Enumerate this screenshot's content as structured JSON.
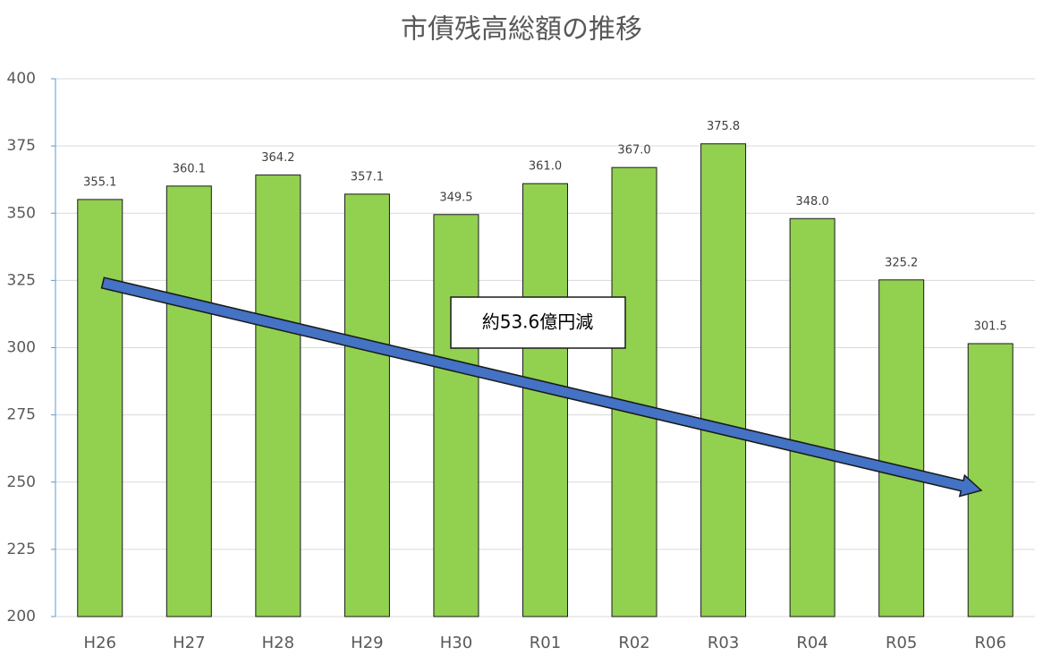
{
  "chart_data": {
    "type": "bar",
    "title": "市債残高総額の推移",
    "categories": [
      "H26",
      "H27",
      "H28",
      "H29",
      "H30",
      "R01",
      "R02",
      "R03",
      "R04",
      "R05",
      "R06"
    ],
    "values": [
      355.1,
      360.1,
      364.2,
      357.1,
      349.5,
      361.0,
      367.0,
      375.8,
      348.0,
      325.2,
      301.5
    ],
    "value_labels": [
      "355.1",
      "360.1",
      "364.2",
      "357.1",
      "349.5",
      "361.0",
      "367.0",
      "375.8",
      "348.0",
      "325.2",
      "301.5"
    ],
    "color": "#92d050",
    "ylim": [
      200,
      400
    ],
    "yticks": [
      200,
      225,
      250,
      275,
      300,
      325,
      350,
      375,
      400
    ],
    "grid": true,
    "annotation": "約53.6億円減"
  }
}
